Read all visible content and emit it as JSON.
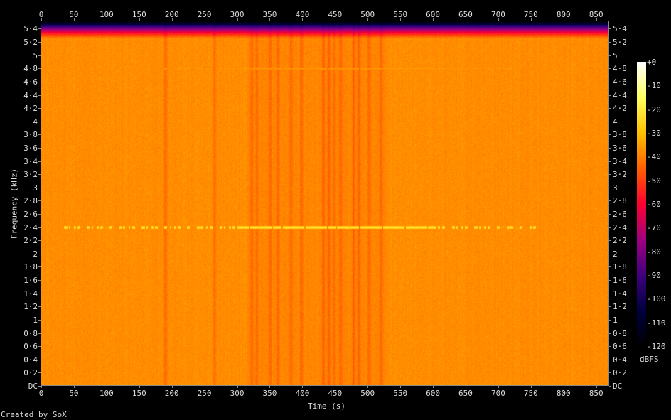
{
  "chart_data": {
    "type": "heatmap",
    "subtype": "spectrogram",
    "xlabel": "Time (s)",
    "ylabel": "Frequency (kHz)",
    "colorbar_label": "dBFS",
    "xlim": [
      0,
      870
    ],
    "ylim_khz": [
      0,
      5.5125
    ],
    "x_ticks": [
      "0",
      "50",
      "100",
      "150",
      "200",
      "250",
      "300",
      "350",
      "400",
      "450",
      "500",
      "550",
      "600",
      "650",
      "700",
      "750",
      "800",
      "850"
    ],
    "y_ticks": [
      "DC",
      "0·2",
      "0·4",
      "0·6",
      "0·8",
      "1",
      "1·2",
      "1·4",
      "1·6",
      "1·8",
      "2",
      "2·2",
      "2·4",
      "2·6",
      "2·8",
      "3",
      "3·2",
      "3·4",
      "3·6",
      "3·8",
      "4",
      "4·2",
      "4·4",
      "4·6",
      "4·8",
      "5",
      "5·2",
      "5·4"
    ],
    "colorbar_ticks": [
      "+0",
      "-10",
      "-20",
      "-30",
      "-40",
      "-50",
      "-60",
      "-70",
      "-80",
      "-90",
      "-100",
      "-110",
      "-120"
    ],
    "colorbar_range_dbfs": [
      -120,
      0
    ],
    "colormap": [
      "#000000",
      "#000040",
      "#400080",
      "#a00080",
      "#ff0030",
      "#ff6000",
      "#ffc000",
      "#ffff60",
      "#ffffff"
    ],
    "background_level_dbfs": -38,
    "features": [
      {
        "kind": "tone",
        "freq_khz": 2.4,
        "start_s": 25,
        "end_s": 760,
        "level_dbfs": -20
      },
      {
        "kind": "tone",
        "freq_khz": 4.8,
        "start_s": 180,
        "end_s": 730,
        "level_dbfs": -33
      },
      {
        "kind": "rolloff",
        "from_khz": 5.25,
        "to_khz": 5.5125,
        "level_dbfs": -120
      },
      {
        "kind": "quiet-bands",
        "times_s": [
          190,
          265,
          322,
          330,
          350,
          362,
          382,
          398,
          432,
          440,
          448,
          458,
          478,
          486,
          502,
          520
        ],
        "level_dbfs": -45
      }
    ]
  },
  "footer": {
    "credit": "Created by SoX"
  }
}
